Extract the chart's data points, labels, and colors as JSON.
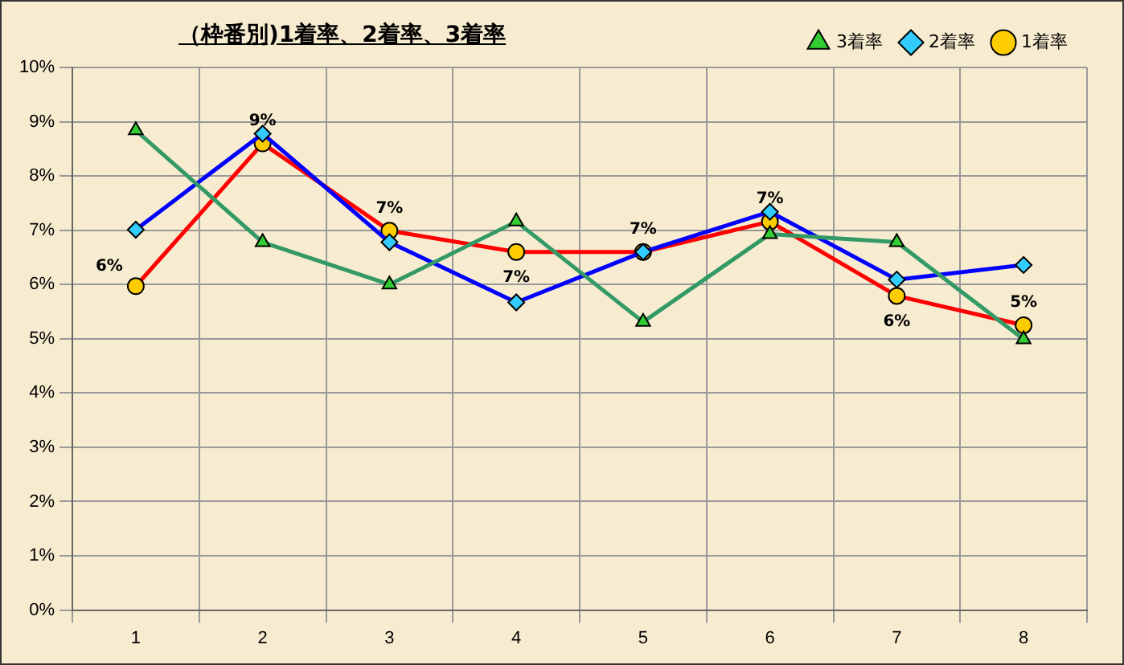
{
  "chart_data": {
    "type": "line",
    "title": "（枠番別)1着率、2着率、3着率",
    "categories": [
      "1",
      "2",
      "3",
      "4",
      "5",
      "6",
      "7",
      "8"
    ],
    "series": [
      {
        "name": "3着率",
        "color": "#339966",
        "marker": "triangle",
        "values": [
          8.84,
          6.78,
          6.0,
          7.16,
          5.31,
          6.93,
          6.78,
          4.99
        ]
      },
      {
        "name": "2着率",
        "color": "#0000ff",
        "marker": "diamond",
        "values": [
          7.01,
          8.78,
          6.78,
          5.67,
          6.6,
          7.34,
          6.09,
          6.36
        ]
      },
      {
        "name": "1着率",
        "color": "#ff0000",
        "marker": "circle",
        "values": [
          5.97,
          8.6,
          6.99,
          6.6,
          6.6,
          7.16,
          5.79,
          5.25
        ],
        "value_labels": [
          "6%",
          "9%",
          "7%",
          "7%",
          "7%",
          "7%",
          "6%",
          "5%"
        ]
      }
    ],
    "ylim": [
      0,
      10
    ],
    "yticks": [
      {
        "value": 0,
        "label": "0%"
      },
      {
        "value": 1,
        "label": "1%"
      },
      {
        "value": 2,
        "label": "2%"
      },
      {
        "value": 3,
        "label": "3%"
      },
      {
        "value": 4,
        "label": "4%"
      },
      {
        "value": 5,
        "label": "5%"
      },
      {
        "value": 6,
        "label": "6%"
      },
      {
        "value": 7,
        "label": "7%"
      },
      {
        "value": 8,
        "label": "8%"
      },
      {
        "value": 9,
        "label": "9%"
      },
      {
        "value": 10,
        "label": "10%"
      }
    ],
    "grid": true,
    "legend": "top right",
    "line_style": "solid"
  }
}
